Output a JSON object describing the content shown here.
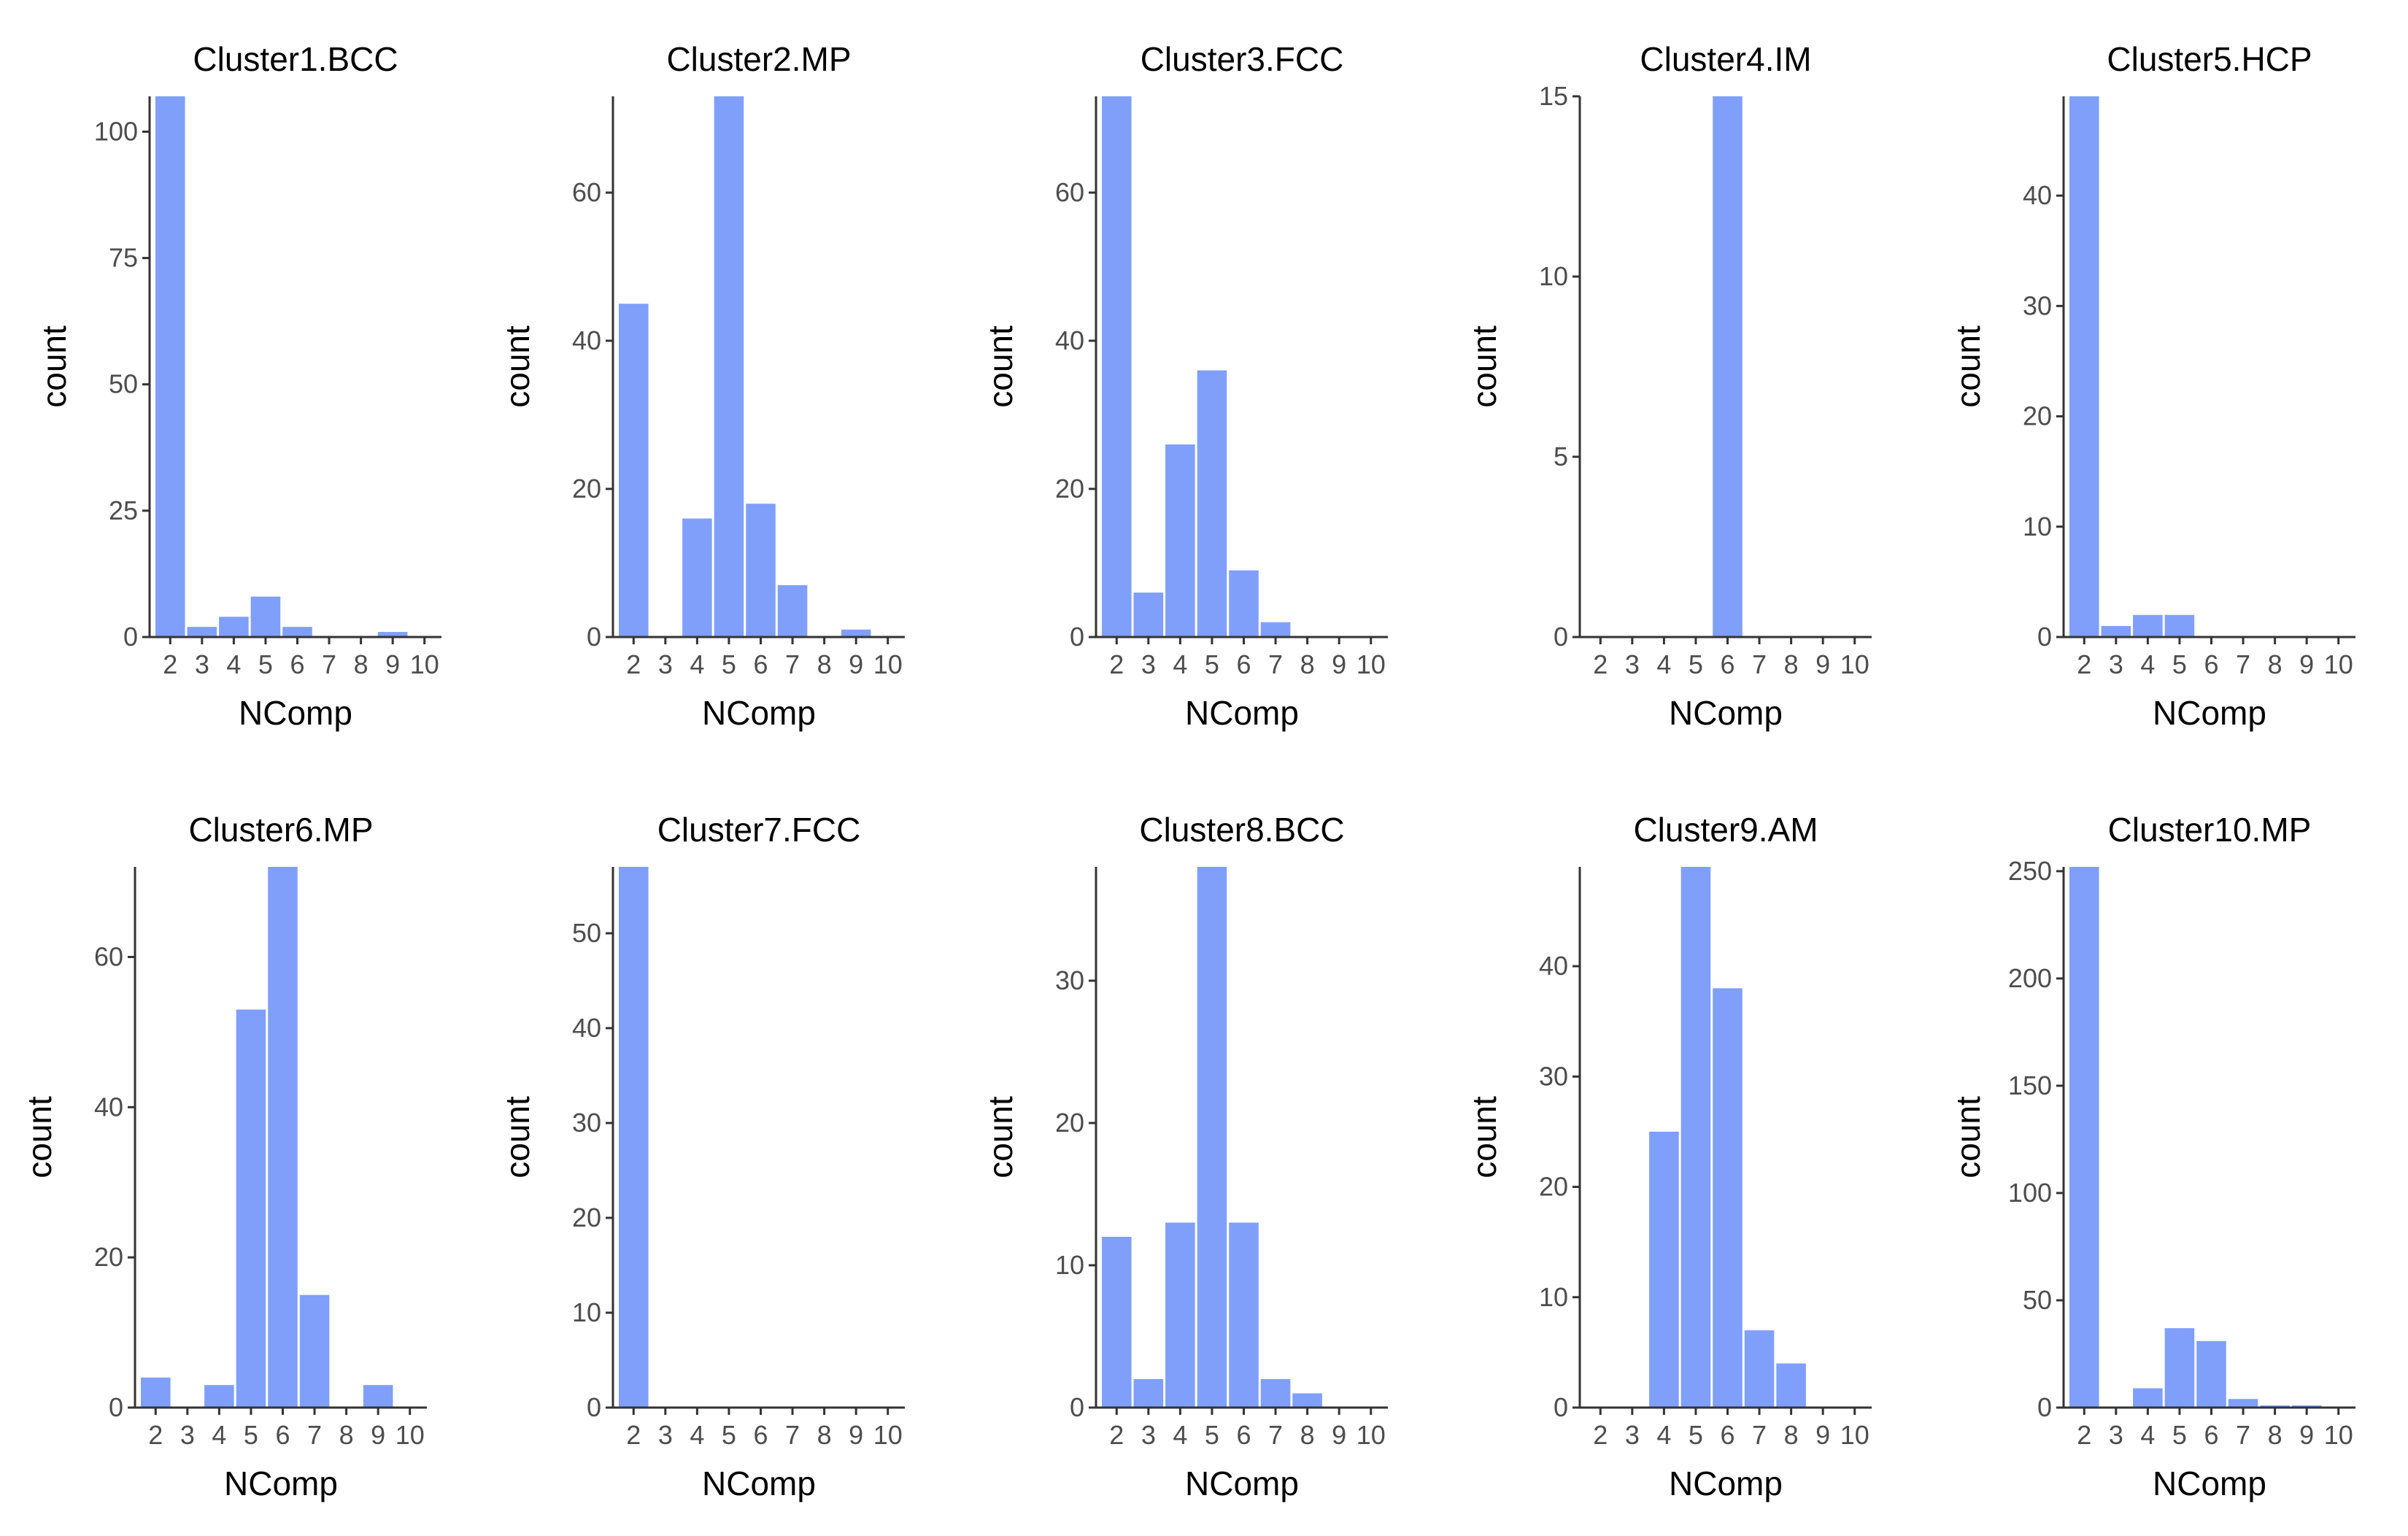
{
  "colors": {
    "bar": "#7f9ffa",
    "axis": "#333333",
    "tick_text": "#4d4d4d",
    "text": "#000000"
  },
  "chart_data": [
    {
      "type": "bar",
      "title": "Cluster1.BCC",
      "xlabel": "NComp",
      "ylabel": "count",
      "categories": [
        "2",
        "3",
        "4",
        "5",
        "6",
        "7",
        "8",
        "9",
        "10"
      ],
      "values": [
        107,
        2,
        4,
        8,
        2,
        0,
        0,
        1,
        0
      ],
      "ylim": [
        0,
        107
      ],
      "yticks": [
        0,
        25,
        50,
        75,
        100
      ]
    },
    {
      "type": "bar",
      "title": "Cluster2.MP",
      "xlabel": "NComp",
      "ylabel": "count",
      "categories": [
        "2",
        "3",
        "4",
        "5",
        "6",
        "7",
        "8",
        "9",
        "10"
      ],
      "values": [
        45,
        0,
        16,
        73,
        18,
        7,
        0,
        1,
        0
      ],
      "ylim": [
        0,
        73
      ],
      "yticks": [
        0,
        20,
        40,
        60
      ]
    },
    {
      "type": "bar",
      "title": "Cluster3.FCC",
      "xlabel": "NComp",
      "ylabel": "count",
      "categories": [
        "2",
        "3",
        "4",
        "5",
        "6",
        "7",
        "8",
        "9",
        "10"
      ],
      "values": [
        73,
        6,
        26,
        36,
        9,
        2,
        0,
        0,
        0
      ],
      "ylim": [
        0,
        73
      ],
      "yticks": [
        0,
        20,
        40,
        60
      ]
    },
    {
      "type": "bar",
      "title": "Cluster4.IM",
      "xlabel": "NComp",
      "ylabel": "count",
      "categories": [
        "2",
        "3",
        "4",
        "5",
        "6",
        "7",
        "8",
        "9",
        "10"
      ],
      "values": [
        0,
        0,
        0,
        0,
        15,
        0,
        0,
        0,
        0
      ],
      "ylim": [
        0,
        15
      ],
      "yticks": [
        0,
        5,
        10,
        15
      ]
    },
    {
      "type": "bar",
      "title": "Cluster5.HCP",
      "xlabel": "NComp",
      "ylabel": "count",
      "categories": [
        "2",
        "3",
        "4",
        "5",
        "6",
        "7",
        "8",
        "9",
        "10"
      ],
      "values": [
        49,
        1,
        2,
        2,
        0,
        0,
        0,
        0,
        0
      ],
      "ylim": [
        0,
        49
      ],
      "yticks": [
        0,
        10,
        20,
        30,
        40
      ]
    },
    {
      "type": "bar",
      "title": "Cluster6.MP",
      "xlabel": "NComp",
      "ylabel": "count",
      "categories": [
        "2",
        "3",
        "4",
        "5",
        "6",
        "7",
        "8",
        "9",
        "10"
      ],
      "values": [
        4,
        0,
        3,
        53,
        72,
        15,
        0,
        3,
        0
      ],
      "ylim": [
        0,
        72
      ],
      "yticks": [
        0,
        20,
        40,
        60
      ]
    },
    {
      "type": "bar",
      "title": "Cluster7.FCC",
      "xlabel": "NComp",
      "ylabel": "count",
      "categories": [
        "2",
        "3",
        "4",
        "5",
        "6",
        "7",
        "8",
        "9",
        "10"
      ],
      "values": [
        57,
        0,
        0,
        0,
        0,
        0,
        0,
        0,
        0
      ],
      "ylim": [
        0,
        57
      ],
      "yticks": [
        0,
        10,
        20,
        30,
        40,
        50
      ]
    },
    {
      "type": "bar",
      "title": "Cluster8.BCC",
      "xlabel": "NComp",
      "ylabel": "count",
      "categories": [
        "2",
        "3",
        "4",
        "5",
        "6",
        "7",
        "8",
        "9",
        "10"
      ],
      "values": [
        12,
        2,
        13,
        38,
        13,
        2,
        1,
        0,
        0
      ],
      "ylim": [
        0,
        38
      ],
      "yticks": [
        0,
        10,
        20,
        30
      ]
    },
    {
      "type": "bar",
      "title": "Cluster9.AM",
      "xlabel": "NComp",
      "ylabel": "count",
      "categories": [
        "2",
        "3",
        "4",
        "5",
        "6",
        "7",
        "8",
        "9",
        "10"
      ],
      "values": [
        0,
        0,
        25,
        49,
        38,
        7,
        4,
        0,
        0
      ],
      "ylim": [
        0,
        49
      ],
      "yticks": [
        0,
        10,
        20,
        30,
        40
      ]
    },
    {
      "type": "bar",
      "title": "Cluster10.MP",
      "xlabel": "NComp",
      "ylabel": "count",
      "categories": [
        "2",
        "3",
        "4",
        "5",
        "6",
        "7",
        "8",
        "9",
        "10"
      ],
      "values": [
        252,
        0,
        9,
        37,
        31,
        4,
        1,
        1,
        0
      ],
      "ylim": [
        0,
        252
      ],
      "yticks": [
        0,
        50,
        100,
        150,
        200,
        250
      ]
    }
  ]
}
